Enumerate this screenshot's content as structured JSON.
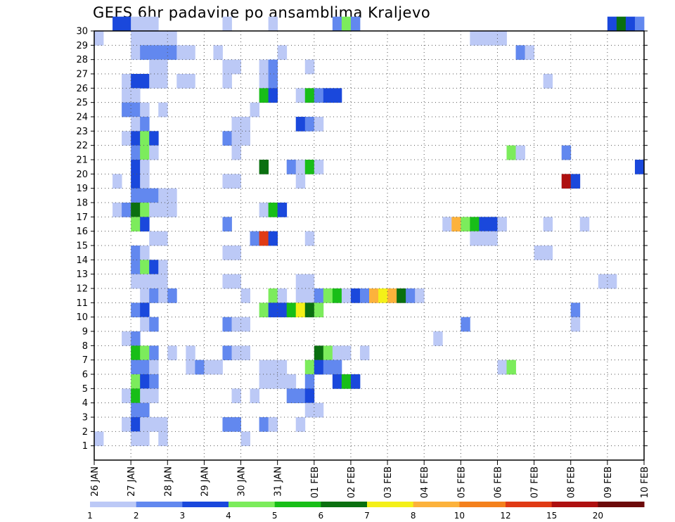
{
  "chart_data": {
    "type": "heatmap",
    "title": "GEFS 6hr padavine po ansamblima Kraljevo",
    "xlabel": "",
    "ylabel": "",
    "x_tick_labels": [
      "26 JAN",
      "27 JAN",
      "28 JAN",
      "29 JAN",
      "30 JAN",
      "31 JAN",
      "01 FEB",
      "02 FEB",
      "03 FEB",
      "04 FEB",
      "05 FEB",
      "06 FEB",
      "07 FEB",
      "08 FEB",
      "09 FEB",
      "10 FEB"
    ],
    "x_range_days": [
      0,
      15
    ],
    "y_tick_labels": [
      "1",
      "2",
      "3",
      "4",
      "5",
      "6",
      "7",
      "8",
      "9",
      "10",
      "11",
      "12",
      "13",
      "14",
      "15",
      "16",
      "17",
      "18",
      "19",
      "20",
      "21",
      "22",
      "23",
      "24",
      "25",
      "26",
      "27",
      "28",
      "29",
      "30"
    ],
    "ylim": [
      0,
      30
    ],
    "grid": true,
    "colorbar": {
      "labels": [
        "1",
        "2",
        "3",
        "4",
        "5",
        "6",
        "7",
        "8",
        "10",
        "12",
        "15",
        "20"
      ],
      "colors": [
        "#bcc9f6",
        "#6288ef",
        "#1a48dc",
        "#7cec5c",
        "#18be18",
        "#0a7010",
        "#f4f018",
        "#fcb23c",
        "#f4801c",
        "#e03a14",
        "#ae1010",
        "#6c0a0a"
      ]
    },
    "cells": [
      [
        30,
        2,
        3
      ],
      [
        30,
        3,
        3
      ],
      [
        30,
        4,
        1
      ],
      [
        30,
        5,
        1
      ],
      [
        30,
        6,
        1
      ],
      [
        30,
        14,
        1
      ],
      [
        30,
        19,
        1
      ],
      [
        30,
        26,
        2
      ],
      [
        30,
        27,
        4
      ],
      [
        30,
        28,
        2
      ],
      [
        30,
        56,
        3
      ],
      [
        30,
        57,
        6
      ],
      [
        30,
        58,
        3
      ],
      [
        30,
        59,
        2
      ],
      [
        29,
        0,
        1
      ],
      [
        29,
        4,
        1
      ],
      [
        29,
        5,
        1
      ],
      [
        29,
        6,
        1
      ],
      [
        29,
        7,
        1
      ],
      [
        29,
        8,
        1
      ],
      [
        29,
        41,
        1
      ],
      [
        29,
        42,
        1
      ],
      [
        29,
        43,
        1
      ],
      [
        29,
        44,
        1
      ],
      [
        28,
        4,
        1
      ],
      [
        28,
        5,
        2
      ],
      [
        28,
        6,
        2
      ],
      [
        28,
        7,
        2
      ],
      [
        28,
        8,
        2
      ],
      [
        28,
        9,
        1
      ],
      [
        28,
        10,
        1
      ],
      [
        28,
        13,
        1
      ],
      [
        28,
        20,
        1
      ],
      [
        28,
        46,
        2
      ],
      [
        28,
        47,
        1
      ],
      [
        27,
        6,
        1
      ],
      [
        27,
        7,
        1
      ],
      [
        27,
        14,
        1
      ],
      [
        27,
        15,
        1
      ],
      [
        27,
        18,
        1
      ],
      [
        27,
        19,
        2
      ],
      [
        27,
        23,
        1
      ],
      [
        26,
        3,
        1
      ],
      [
        26,
        4,
        3
      ],
      [
        26,
        5,
        3
      ],
      [
        26,
        6,
        1
      ],
      [
        26,
        7,
        1
      ],
      [
        26,
        9,
        1
      ],
      [
        26,
        10,
        1
      ],
      [
        26,
        14,
        1
      ],
      [
        26,
        18,
        1
      ],
      [
        26,
        19,
        2
      ],
      [
        26,
        49,
        1
      ],
      [
        25,
        3,
        1
      ],
      [
        25,
        4,
        1
      ],
      [
        25,
        18,
        5
      ],
      [
        25,
        19,
        3
      ],
      [
        25,
        22,
        1
      ],
      [
        25,
        23,
        5
      ],
      [
        25,
        24,
        2
      ],
      [
        25,
        25,
        3
      ],
      [
        25,
        26,
        3
      ],
      [
        24,
        3,
        2
      ],
      [
        24,
        4,
        2
      ],
      [
        24,
        5,
        1
      ],
      [
        24,
        7,
        1
      ],
      [
        24,
        17,
        1
      ],
      [
        23,
        4,
        1
      ],
      [
        23,
        5,
        2
      ],
      [
        23,
        15,
        1
      ],
      [
        23,
        16,
        1
      ],
      [
        23,
        22,
        3
      ],
      [
        23,
        23,
        2
      ],
      [
        23,
        24,
        1
      ],
      [
        22,
        3,
        1
      ],
      [
        22,
        4,
        3
      ],
      [
        22,
        5,
        4
      ],
      [
        22,
        6,
        3
      ],
      [
        22,
        14,
        2
      ],
      [
        22,
        15,
        1
      ],
      [
        22,
        16,
        1
      ],
      [
        21,
        4,
        2
      ],
      [
        21,
        5,
        4
      ],
      [
        21,
        6,
        1
      ],
      [
        21,
        15,
        1
      ],
      [
        21,
        45,
        4
      ],
      [
        21,
        46,
        1
      ],
      [
        21,
        51,
        2
      ],
      [
        20,
        4,
        3
      ],
      [
        20,
        5,
        1
      ],
      [
        20,
        18,
        6
      ],
      [
        20,
        21,
        2
      ],
      [
        20,
        22,
        1
      ],
      [
        20,
        23,
        5
      ],
      [
        20,
        24,
        1
      ],
      [
        20,
        59,
        3
      ],
      [
        19,
        2,
        1
      ],
      [
        19,
        4,
        3
      ],
      [
        19,
        5,
        1
      ],
      [
        19,
        14,
        1
      ],
      [
        19,
        15,
        1
      ],
      [
        19,
        22,
        1
      ],
      [
        19,
        51,
        11
      ],
      [
        19,
        52,
        3
      ],
      [
        18,
        4,
        2
      ],
      [
        18,
        5,
        2
      ],
      [
        18,
        6,
        2
      ],
      [
        18,
        7,
        1
      ],
      [
        18,
        8,
        1
      ],
      [
        17,
        2,
        1
      ],
      [
        17,
        3,
        2
      ],
      [
        17,
        4,
        6
      ],
      [
        17,
        5,
        4
      ],
      [
        17,
        6,
        1
      ],
      [
        17,
        7,
        1
      ],
      [
        17,
        8,
        1
      ],
      [
        17,
        18,
        1
      ],
      [
        17,
        19,
        5
      ],
      [
        17,
        20,
        3
      ],
      [
        16,
        4,
        4
      ],
      [
        16,
        5,
        3
      ],
      [
        16,
        14,
        2
      ],
      [
        16,
        38,
        1
      ],
      [
        16,
        39,
        8
      ],
      [
        16,
        40,
        4
      ],
      [
        16,
        41,
        5
      ],
      [
        16,
        42,
        3
      ],
      [
        16,
        43,
        3
      ],
      [
        16,
        44,
        1
      ],
      [
        16,
        49,
        1
      ],
      [
        16,
        53,
        1
      ],
      [
        15,
        6,
        1
      ],
      [
        15,
        7,
        1
      ],
      [
        15,
        17,
        2
      ],
      [
        15,
        18,
        10
      ],
      [
        15,
        19,
        3
      ],
      [
        15,
        23,
        1
      ],
      [
        15,
        41,
        1
      ],
      [
        15,
        42,
        1
      ],
      [
        15,
        43,
        1
      ],
      [
        14,
        4,
        2
      ],
      [
        14,
        5,
        1
      ],
      [
        14,
        14,
        1
      ],
      [
        14,
        15,
        1
      ],
      [
        14,
        48,
        1
      ],
      [
        14,
        49,
        1
      ],
      [
        13,
        4,
        2
      ],
      [
        13,
        5,
        4
      ],
      [
        13,
        6,
        3
      ],
      [
        13,
        7,
        1
      ],
      [
        12,
        4,
        1
      ],
      [
        12,
        5,
        1
      ],
      [
        12,
        6,
        1
      ],
      [
        12,
        7,
        1
      ],
      [
        12,
        14,
        1
      ],
      [
        12,
        15,
        1
      ],
      [
        12,
        22,
        1
      ],
      [
        12,
        23,
        1
      ],
      [
        12,
        55,
        1
      ],
      [
        12,
        56,
        1
      ],
      [
        11,
        5,
        1
      ],
      [
        11,
        6,
        2
      ],
      [
        11,
        7,
        1
      ],
      [
        11,
        8,
        2
      ],
      [
        11,
        16,
        1
      ],
      [
        11,
        19,
        4
      ],
      [
        11,
        20,
        1
      ],
      [
        11,
        22,
        1
      ],
      [
        11,
        23,
        1
      ],
      [
        11,
        24,
        2
      ],
      [
        11,
        25,
        4
      ],
      [
        11,
        26,
        5
      ],
      [
        11,
        27,
        1
      ],
      [
        11,
        28,
        3
      ],
      [
        11,
        29,
        2
      ],
      [
        11,
        30,
        8
      ],
      [
        11,
        31,
        7
      ],
      [
        11,
        32,
        8
      ],
      [
        11,
        33,
        6
      ],
      [
        11,
        34,
        2
      ],
      [
        11,
        35,
        1
      ],
      [
        10,
        4,
        2
      ],
      [
        10,
        5,
        3
      ],
      [
        10,
        18,
        4
      ],
      [
        10,
        19,
        3
      ],
      [
        10,
        20,
        3
      ],
      [
        10,
        21,
        5
      ],
      [
        10,
        22,
        7
      ],
      [
        10,
        23,
        6
      ],
      [
        10,
        24,
        4
      ],
      [
        10,
        52,
        2
      ],
      [
        9,
        5,
        1
      ],
      [
        9,
        6,
        2
      ],
      [
        9,
        14,
        2
      ],
      [
        9,
        15,
        1
      ],
      [
        9,
        16,
        1
      ],
      [
        9,
        40,
        2
      ],
      [
        9,
        52,
        1
      ],
      [
        8,
        3,
        1
      ],
      [
        8,
        4,
        2
      ],
      [
        8,
        37,
        1
      ],
      [
        7,
        4,
        5
      ],
      [
        7,
        5,
        4
      ],
      [
        7,
        6,
        2
      ],
      [
        7,
        8,
        1
      ],
      [
        7,
        10,
        1
      ],
      [
        7,
        14,
        2
      ],
      [
        7,
        15,
        1
      ],
      [
        7,
        16,
        1
      ],
      [
        7,
        24,
        6
      ],
      [
        7,
        25,
        4
      ],
      [
        7,
        26,
        1
      ],
      [
        7,
        27,
        1
      ],
      [
        7,
        29,
        1
      ],
      [
        6,
        4,
        2
      ],
      [
        6,
        5,
        2
      ],
      [
        6,
        6,
        1
      ],
      [
        6,
        10,
        1
      ],
      [
        6,
        11,
        2
      ],
      [
        6,
        12,
        1
      ],
      [
        6,
        13,
        1
      ],
      [
        6,
        18,
        1
      ],
      [
        6,
        19,
        1
      ],
      [
        6,
        20,
        1
      ],
      [
        6,
        23,
        4
      ],
      [
        6,
        24,
        3
      ],
      [
        6,
        25,
        2
      ],
      [
        6,
        26,
        2
      ],
      [
        6,
        44,
        1
      ],
      [
        6,
        45,
        4
      ],
      [
        5,
        4,
        4
      ],
      [
        5,
        5,
        3
      ],
      [
        5,
        6,
        2
      ],
      [
        5,
        18,
        1
      ],
      [
        5,
        19,
        1
      ],
      [
        5,
        20,
        1
      ],
      [
        5,
        21,
        1
      ],
      [
        5,
        23,
        2
      ],
      [
        5,
        26,
        3
      ],
      [
        5,
        27,
        5
      ],
      [
        5,
        28,
        3
      ],
      [
        4,
        3,
        1
      ],
      [
        4,
        4,
        5
      ],
      [
        4,
        5,
        1
      ],
      [
        4,
        6,
        1
      ],
      [
        4,
        15,
        1
      ],
      [
        4,
        17,
        1
      ],
      [
        4,
        21,
        2
      ],
      [
        4,
        22,
        2
      ],
      [
        4,
        23,
        3
      ],
      [
        3,
        4,
        2
      ],
      [
        3,
        5,
        2
      ],
      [
        3,
        23,
        1
      ],
      [
        3,
        24,
        1
      ],
      [
        2,
        3,
        1
      ],
      [
        2,
        4,
        3
      ],
      [
        2,
        5,
        1
      ],
      [
        2,
        6,
        1
      ],
      [
        2,
        7,
        1
      ],
      [
        2,
        14,
        2
      ],
      [
        2,
        15,
        2
      ],
      [
        2,
        18,
        2
      ],
      [
        2,
        19,
        1
      ],
      [
        2,
        22,
        1
      ],
      [
        1,
        0,
        1
      ],
      [
        1,
        4,
        1
      ],
      [
        1,
        5,
        1
      ],
      [
        1,
        7,
        1
      ],
      [
        1,
        16,
        1
      ]
    ]
  }
}
